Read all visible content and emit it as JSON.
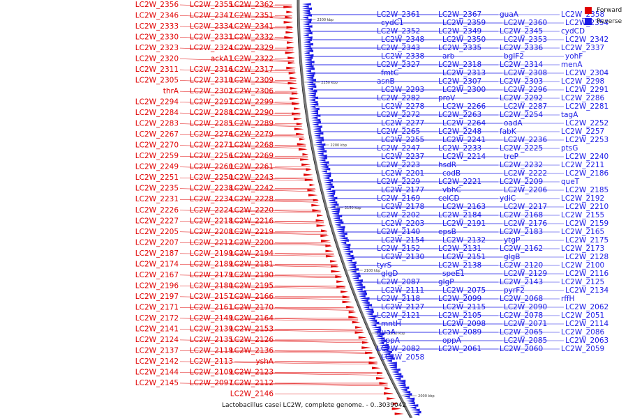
{
  "caption": "Lactobacillus casei LC2W, complete genome. - 0..3039042",
  "legend": {
    "forward": {
      "label": "Forward",
      "color": "#e00000"
    },
    "reverse": {
      "label": "Reverse",
      "color": "#1a1ae6"
    }
  },
  "ticks": [
    "2300 kbp",
    "2250 kbp",
    "2200 kbp",
    "2150 kbp",
    "2100 kbp",
    "2050 kbp",
    "2000 kbp"
  ],
  "forward_genes": [
    "LC2W_2362",
    "LC2W_2355",
    "LC2W_2356",
    "LC2W_2351",
    "LC2W_2347",
    "LC2W_2346",
    "LC2W_2341",
    "LC2W_2334",
    "LC2W_2333",
    "LC2W_2332",
    "LC2W_2331",
    "LC2W_2330",
    "LC2W_2329",
    "LC2W_2324",
    "LC2W_2323",
    "LC2W_2322",
    "ackA1",
    "LC2W_2320",
    "LC2W_2317",
    "LC2W_2316",
    "LC2W_2311",
    "LC2W_2309",
    "LC2W_2310",
    "LC2W_2305",
    "LC2W_2306",
    "LC2W_2302",
    "thrA",
    "LC2W_2299",
    "LC2W_2297",
    "LC2W_2294",
    "LC2W_2290",
    "LC2W_2288",
    "LC2W_2284",
    "LC2W_2289",
    "LC2W_2285",
    "LC2W_2283",
    "LC2W_2279",
    "LC2W_2276",
    "LC2W_2267",
    "LC2W_2268",
    "LC2W_2271",
    "LC2W_2270",
    "LC2W_2269",
    "LC2W_2256",
    "LC2W_2259",
    "LC2W_2261",
    "LC2W_2260",
    "LC2W_2249",
    "LC2W_2243",
    "LC2W_2250",
    "LC2W_2251",
    "LC2W_2242",
    "LC2W_2238",
    "LC2W_2235",
    "LC2W_2228",
    "LC2W_2234",
    "LC2W_2231",
    "LC2W_2220",
    "LC2W_2224",
    "LC2W_2226",
    "LC2W_2216",
    "LC2W_2218",
    "LC2W_2227",
    "LC2W_2219",
    "LC2W_2208",
    "LC2W_2205",
    "LC2W_2200",
    "LC2W_2212",
    "LC2W_2207",
    "LC2W_2194",
    "LC2W_2199",
    "LC2W_2187",
    "LC2W_2181",
    "LC2W_2189",
    "LC2W_2174",
    "LC2W_2190",
    "LC2W_2179",
    "LC2W_2167",
    "LC2W_2195",
    "LC2W_2180",
    "LC2W_2196",
    "LC2W_2166",
    "LC2W_2157",
    "LC2W_2197",
    "LC2W_2170",
    "LC2W_2161",
    "LC2W_2171",
    "LC2W_2164",
    "LC2W_2149",
    "LC2W_2172",
    "LC2W_2153",
    "LC2W_2139",
    "LC2W_2141",
    "LC2W_2126",
    "LC2W_2135",
    "LC2W_2124",
    "LC2W_2136",
    "LC2W_2119",
    "LC2W_2137",
    "yshA",
    "LC2W_2113",
    "LC2W_2142",
    "LC2W_2123",
    "LC2W_2109",
    "LC2W_2144",
    "LC2W_2112",
    "LC2W_2097",
    "LC2W_2145",
    "LC2W_2146"
  ],
  "reverse_genes": [
    "LC2W_2361",
    "LC2W_2367",
    "guaA",
    "LC2W_2358",
    "cydC1",
    "LC2W_2359",
    "LC2W_2360",
    "LC2W_2354",
    "LC2W_2352",
    "LC2W_2349",
    "LC2W_2345",
    "cydCD",
    "LC2W_2348",
    "LC2W_2350",
    "LC2W_2353",
    "LC2W_2342",
    "LC2W_2343",
    "LC2W_2335",
    "LC2W_2336",
    "LC2W_2337",
    "LC2W_2338",
    "arb",
    "bglF2",
    "yohF",
    "LC2W_2327",
    "LC2W_2318",
    "LC2W_2314",
    "menA",
    "fmtC",
    "LC2W_2313",
    "LC2W_2308",
    "LC2W_2304",
    "asnB",
    "LC2W_2307",
    "LC2W_2303",
    "LC2W_2298",
    "LC2W_2293",
    "LC2W_2300",
    "LC2W_2296",
    "LC2W_2291",
    "LC2W_2282",
    "proV",
    "LC2W_2292",
    "LC2W_2286",
    "LC2W_2278",
    "LC2W_2266",
    "LC2W_2287",
    "LC2W_2281",
    "LC2W_2272",
    "LC2W_2263",
    "LC2W_2254",
    "tagA",
    "LC2W_2277",
    "LC2W_2264",
    "oadA",
    "LC2W_2252",
    "LC2W_2265",
    "LC2W_2248",
    "fabK",
    "LC2W_2257",
    "LC2W_2255",
    "LC2W_2241",
    "LC2W_2236",
    "LC2W_2253",
    "LC2W_2247",
    "LC2W_2233",
    "LC2W_2225",
    "ptsG",
    "LC2W_2237",
    "LC2W_2214",
    "treP",
    "LC2W_2240",
    "LC2W_2223",
    "hsdR",
    "LC2W_2232",
    "LC2W_2211",
    "LC2W_2201",
    "codB",
    "LC2W_2222",
    "LC2W_2186",
    "LC2W_2229",
    "LC2W_2221",
    "LC2W_2209",
    "queT",
    "LC2W_2177",
    "vbhC",
    "LC2W_2206",
    "LC2W_2185",
    "LC2W_2169",
    "celCD",
    "ydiC",
    "LC2W_2192",
    "LC2W_2178",
    "LC2W_2163",
    "LC2W_2217",
    "LC2W_2210",
    "LC2W_2202",
    "LC2W_2184",
    "LC2W_2168",
    "LC2W_2155",
    "LC2W_2203",
    "LC2W_2191",
    "LC2W_2176",
    "LC2W_2159",
    "LC2W_2140",
    "epsB",
    "LC2W_2183",
    "LC2W_2165",
    "LC2W_2154",
    "LC2W_2132",
    "ytgP",
    "LC2W_2175",
    "LC2W_2152",
    "LC2W_2131",
    "LC2W_2162",
    "LC2W_2173",
    "LC2W_2130",
    "LC2W_2151",
    "glgB",
    "LC2W_2128",
    "tyrS",
    "LC2W_2138",
    "LC2W_2120",
    "LC2W_2100",
    "glgD",
    "speE1",
    "LC2W_2129",
    "LC2W_2116",
    "LC2W_2087",
    "glgP",
    "LC2W_2143",
    "LC2W_2125",
    "LC2W_2111",
    "LC2W_2075",
    "pyrF2",
    "LC2W_2134",
    "LC2W_2118",
    "LC2W_2099",
    "LC2W_2068",
    "rffH",
    "LC2W_2127",
    "LC2W_2115",
    "LC2W_2090",
    "LC2W_2062",
    "LC2W_2121",
    "LC2W_2105",
    "LC2W_2078",
    "LC2W_2051",
    "mntH",
    "LC2W_2098",
    "LC2W_2071",
    "LC2W_2114",
    "guaA",
    "LC2W_2089",
    "LC2W_2065",
    "LC2W_2086",
    "oppA",
    "oppA",
    "LC2W_2085",
    "LC2W_2063",
    "LC2W_2082",
    "LC2W_2061",
    "LC2W_2060",
    "LC2W_2059",
    "LC2W_2058"
  ]
}
